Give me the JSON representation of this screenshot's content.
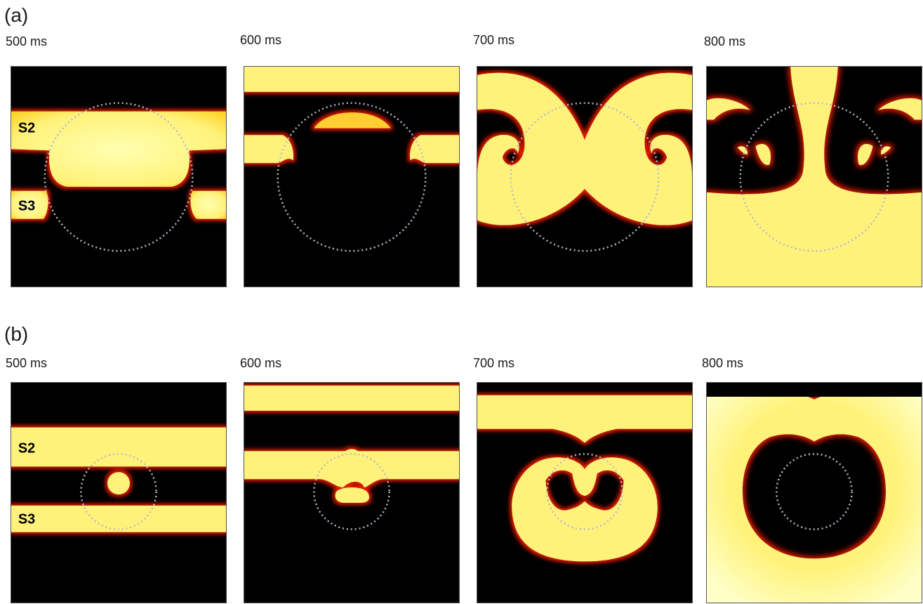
{
  "panels": [
    {
      "label": "(a)",
      "times": [
        "500 ms",
        "600 ms",
        "700 ms",
        "800 ms"
      ],
      "wave_labels": [
        "S2",
        "S3"
      ]
    },
    {
      "label": "(b)",
      "times": [
        "500 ms",
        "600 ms",
        "700 ms",
        "800 ms"
      ],
      "wave_labels": [
        "S2",
        "S3"
      ]
    }
  ],
  "colors": {
    "background": "#000000",
    "wave_core": "#ffff99",
    "wave_mid": "#ffe23a",
    "wave_edge": "#e21a00",
    "circle_outline": "#b8b8cc"
  }
}
